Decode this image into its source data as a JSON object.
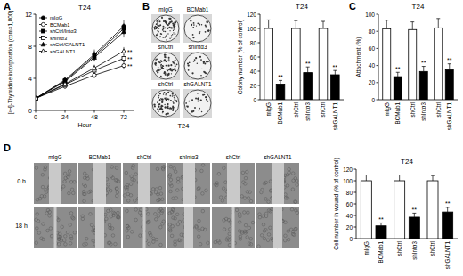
{
  "panel_letters": [
    "A",
    "B",
    "C",
    "D"
  ],
  "colony_images": {
    "labels": [
      "mIgG",
      "BCMab1",
      "shCtrl",
      "shIntα3",
      "shCtrl",
      "shGALNT1"
    ],
    "cell_line": "T24"
  },
  "wound_images": {
    "labels": [
      "mIgG",
      "BCMab1",
      "shCtrl",
      "shIntα3",
      "shCtrl",
      "shGALNT1"
    ],
    "times": [
      "0 h",
      "18 h"
    ]
  },
  "chart_data": [
    {
      "type": "line",
      "title": "T24",
      "x_label": "Hour",
      "y_label": "[³H]-Thymidine incorporation (cpm×1,000)",
      "x": [
        0,
        24,
        48,
        72
      ],
      "xlim": [
        0,
        80
      ],
      "xticks": [
        0,
        24,
        48,
        72
      ],
      "ylim": [
        0,
        12
      ],
      "yticks": [
        0,
        4,
        8,
        12
      ],
      "legend": "top-left",
      "series": [
        {
          "name": "mIgG",
          "color": "#000000",
          "marker": "circle",
          "values": [
            1.5,
            3.8,
            7.0,
            10.5
          ],
          "errors": [
            0.3,
            0.4,
            0.6,
            0.8
          ]
        },
        {
          "name": "BCMab1",
          "color": "#000000",
          "marker": "open-circle",
          "values": [
            1.5,
            3.0,
            4.4,
            5.6
          ],
          "errors": [
            0.3,
            0.3,
            0.4,
            0.5
          ],
          "significance": [
            null,
            null,
            null,
            "**"
          ]
        },
        {
          "name": "shCtrl/Intα3",
          "color": "#000000",
          "marker": "square",
          "values": [
            1.5,
            3.7,
            6.8,
            10.2
          ],
          "errors": [
            0.3,
            0.4,
            0.6,
            0.7
          ]
        },
        {
          "name": "shIntα3",
          "color": "#000000",
          "marker": "open-square",
          "values": [
            1.5,
            3.2,
            5.0,
            6.5
          ],
          "errors": [
            0.3,
            0.3,
            0.4,
            0.5
          ],
          "significance": [
            null,
            null,
            null,
            "**"
          ]
        },
        {
          "name": "shCtrl/GALNT1",
          "color": "#000000",
          "marker": "triangle",
          "values": [
            1.5,
            3.6,
            6.6,
            9.8
          ],
          "errors": [
            0.3,
            0.4,
            0.5,
            0.7
          ]
        },
        {
          "name": "shGALNT1",
          "color": "#000000",
          "marker": "open-triangle",
          "values": [
            1.5,
            3.3,
            5.3,
            7.4
          ],
          "errors": [
            0.3,
            0.3,
            0.4,
            0.5
          ],
          "significance": [
            null,
            null,
            null,
            "**"
          ]
        }
      ]
    },
    {
      "type": "bar",
      "title": "T24",
      "y_label": "Colony number (% of control)",
      "categories": [
        "mIgG",
        "BCMab1",
        "shCtrl",
        "shIntα3",
        "shCtrl",
        "shGALNT1"
      ],
      "values": [
        100,
        22,
        100,
        38,
        100,
        35
      ],
      "errors": [
        12,
        5,
        11,
        8,
        10,
        6
      ],
      "significance": [
        null,
        "**",
        null,
        "**",
        null,
        "**"
      ],
      "colors": [
        "#ffffff",
        "#000000",
        "#ffffff",
        "#000000",
        "#ffffff",
        "#000000"
      ],
      "ylim": [
        0,
        120
      ],
      "yticks": [
        0,
        20,
        40,
        60,
        80,
        100,
        120
      ]
    },
    {
      "type": "bar",
      "title": "T24",
      "y_label": "Attachment (%)",
      "categories": [
        "mIgG",
        "BCMab1",
        "shCtrl",
        "shIntα3",
        "shCtrl",
        "shGALNT1"
      ],
      "values": [
        83,
        27,
        82,
        33,
        84,
        35
      ],
      "errors": [
        10,
        5,
        9,
        6,
        11,
        7
      ],
      "significance": [
        null,
        "**",
        null,
        "**",
        null,
        "**"
      ],
      "colors": [
        "#ffffff",
        "#000000",
        "#ffffff",
        "#000000",
        "#ffffff",
        "#000000"
      ],
      "ylim": [
        0,
        100
      ],
      "yticks": [
        0,
        20,
        40,
        60,
        80,
        100
      ]
    },
    {
      "type": "bar",
      "title": "T24",
      "y_label": "Cell number in wound (% of control)",
      "categories": [
        "mIgG",
        "BCMab1",
        "shCtrl",
        "shIntα3",
        "shCtrl",
        "shGALNT1"
      ],
      "values": [
        100,
        22,
        100,
        37,
        100,
        46
      ],
      "errors": [
        10,
        5,
        10,
        7,
        9,
        8
      ],
      "significance": [
        null,
        "**",
        null,
        "**",
        null,
        "**"
      ],
      "colors": [
        "#ffffff",
        "#000000",
        "#ffffff",
        "#000000",
        "#ffffff",
        "#000000"
      ],
      "ylim": [
        0,
        120
      ],
      "yticks": [
        0,
        20,
        40,
        60,
        80,
        100,
        120
      ]
    }
  ]
}
